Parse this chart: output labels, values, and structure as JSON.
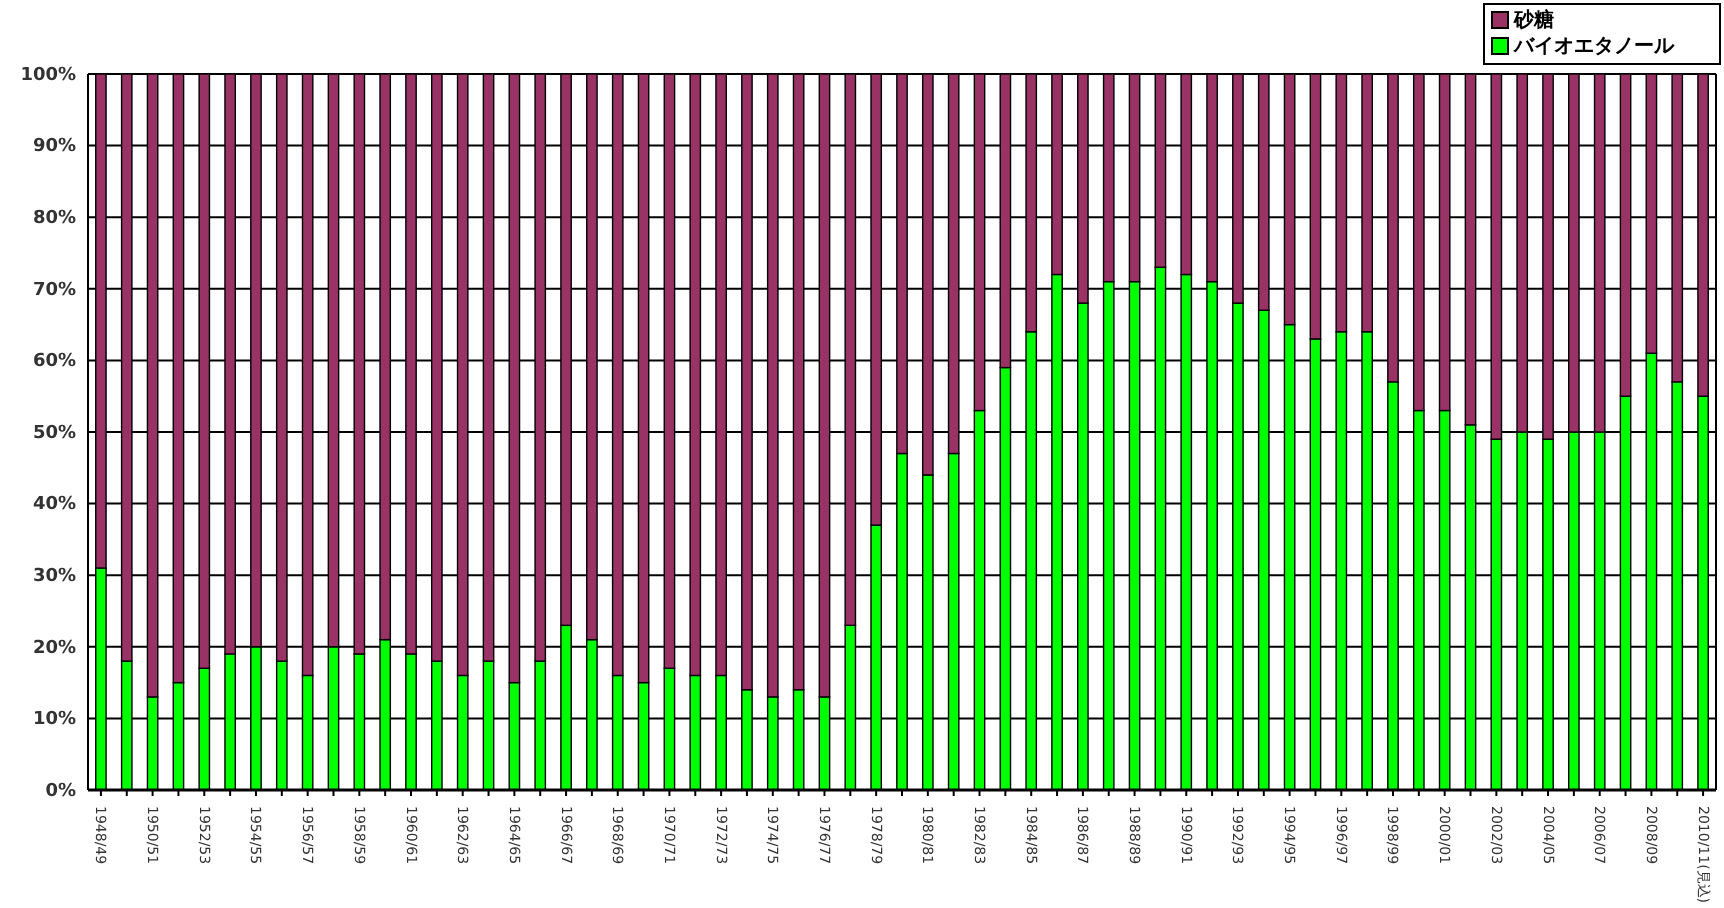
{
  "chart_data": {
    "type": "bar",
    "stacked": true,
    "categories": [
      "1948/49",
      null,
      "1950/51",
      null,
      "1952/53",
      null,
      "1954/55",
      null,
      "1956/57",
      null,
      "1958/59",
      null,
      "1960/61",
      null,
      "1962/63",
      null,
      "1964/65",
      null,
      "1966/67",
      null,
      "1968/69",
      null,
      "1970/71",
      null,
      "1972/73",
      null,
      "1974/75",
      null,
      "1976/77",
      null,
      "1978/79",
      null,
      "1980/81",
      null,
      "1982/83",
      null,
      "1984/85",
      null,
      "1986/87",
      null,
      "1988/89",
      null,
      "1990/91",
      null,
      "1992/93",
      null,
      "1994/95",
      null,
      "1996/97",
      null,
      "1998/99",
      null,
      "2000/01",
      null,
      "2002/03",
      null,
      "2004/05",
      null,
      "2006/07",
      null,
      "2008/09",
      null,
      "2010/11(見込)"
    ],
    "series": [
      {
        "name": "バイオエタノール",
        "color": "#00ff00",
        "values": [
          31,
          18,
          13,
          15,
          17,
          19,
          20,
          18,
          16,
          20,
          19,
          21,
          19,
          18,
          16,
          18,
          15,
          18,
          23,
          21,
          16,
          15,
          17,
          16,
          16,
          14,
          13,
          14,
          13,
          23,
          37,
          47,
          44,
          47,
          53,
          59,
          64,
          72,
          68,
          71,
          71,
          73,
          72,
          71,
          68,
          67,
          65,
          63,
          64,
          64,
          57,
          53,
          53,
          51,
          49,
          50,
          49,
          50,
          50,
          55,
          61,
          57,
          55
        ]
      },
      {
        "name": "砂糖",
        "color": "#993366",
        "values": [
          69,
          82,
          87,
          85,
          83,
          81,
          80,
          82,
          84,
          80,
          81,
          79,
          81,
          82,
          84,
          82,
          85,
          82,
          77,
          79,
          84,
          85,
          83,
          84,
          84,
          86,
          87,
          86,
          87,
          77,
          63,
          53,
          56,
          53,
          47,
          41,
          36,
          28,
          32,
          29,
          29,
          27,
          28,
          29,
          32,
          33,
          35,
          37,
          36,
          36,
          43,
          47,
          47,
          49,
          51,
          50,
          51,
          50,
          50,
          45,
          39,
          43,
          45
        ]
      }
    ],
    "ylim": [
      0,
      100
    ],
    "yticks": [
      {
        "value": 0,
        "label": "0%"
      },
      {
        "value": 10,
        "label": "10%"
      },
      {
        "value": 20,
        "label": "20%"
      },
      {
        "value": 30,
        "label": "30%"
      },
      {
        "value": 40,
        "label": "40%"
      },
      {
        "value": 50,
        "label": "50%"
      },
      {
        "value": 60,
        "label": "60%"
      },
      {
        "value": 70,
        "label": "70%"
      },
      {
        "value": 80,
        "label": "80%"
      },
      {
        "value": 90,
        "label": "90%"
      },
      {
        "value": 100,
        "label": "100%"
      }
    ],
    "grid": "y",
    "legend": "top right"
  }
}
